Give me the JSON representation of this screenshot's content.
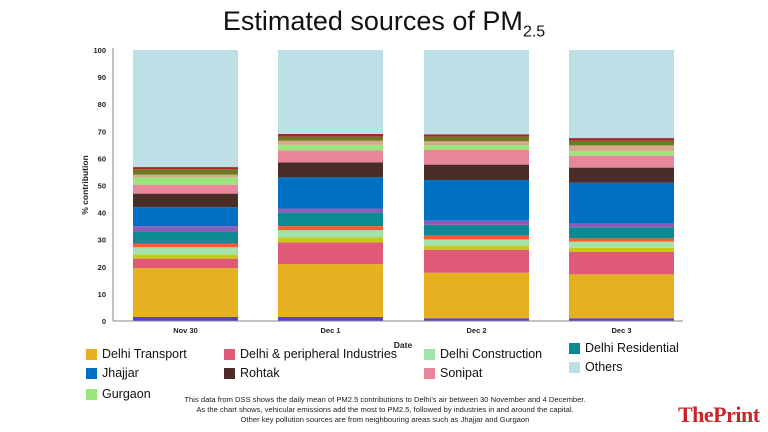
{
  "chart_data": {
    "type": "bar",
    "stacked": true,
    "title_main": "Estimated sources of PM",
    "title_sub": "2.5",
    "xlabel": "Date",
    "ylabel": "% contribution",
    "ylim": [
      0,
      100
    ],
    "yticks": [
      0,
      10,
      20,
      30,
      40,
      50,
      60,
      70,
      80,
      90,
      100
    ],
    "grid": false,
    "legend_position": "bottom",
    "categories": [
      "Nov 30",
      "Dec 1",
      "Dec 2",
      "Dec 3"
    ],
    "series": [
      {
        "color": "#5a3ee0",
        "values": [
          1.5,
          1.5,
          1.0,
          1.0
        ]
      },
      {
        "name": "Delhi Transport",
        "color": "#e6b120",
        "values": [
          18.0,
          19.5,
          16.8,
          16.2
        ]
      },
      {
        "name": "Delhi & peripheral Industries",
        "color": "#e05a78",
        "values": [
          3.5,
          8.0,
          8.5,
          8.3
        ]
      },
      {
        "color": "#c9c81a",
        "values": [
          1.5,
          1.8,
          1.5,
          1.5
        ]
      },
      {
        "name": "Delhi Construction",
        "color": "#a1e3a8",
        "values": [
          2.7,
          2.7,
          2.3,
          2.3
        ]
      },
      {
        "color": "#ff5a2a",
        "values": [
          1.3,
          1.5,
          1.4,
          1.2
        ]
      },
      {
        "name": "Delhi Residential",
        "color": "#0b8a94",
        "values": [
          4.5,
          5.0,
          4.0,
          4.1
        ]
      },
      {
        "color": "#8c5cb8",
        "values": [
          2.0,
          1.5,
          1.5,
          1.3
        ]
      },
      {
        "name": "Jhajjar",
        "color": "#0071c2",
        "values": [
          7.0,
          11.5,
          15.0,
          15.1
        ]
      },
      {
        "name": "Rohtak",
        "color": "#4a2d26",
        "values": [
          5.0,
          5.5,
          5.7,
          5.6
        ]
      },
      {
        "name": "Sonipat",
        "color": "#e8879a",
        "values": [
          3.3,
          4.5,
          5.4,
          4.4
        ]
      },
      {
        "name": "Gurgaon",
        "color": "#9be67a",
        "values": [
          2.7,
          2.0,
          1.7,
          1.7
        ]
      },
      {
        "color": "#d6a98c",
        "values": [
          1.0,
          1.5,
          1.5,
          2.1
        ]
      },
      {
        "color": "#6e7a22",
        "values": [
          2.0,
          1.5,
          1.7,
          1.7
        ]
      },
      {
        "color": "#a4262c",
        "values": [
          0.8,
          1.0,
          0.9,
          1.0
        ]
      },
      {
        "name": "Others",
        "color": "#bde0e6",
        "values": [
          43.2,
          31.0,
          31.1,
          32.5
        ]
      }
    ]
  },
  "legend": [
    {
      "label": "Delhi Transport",
      "color": "#e6b120"
    },
    {
      "label": "Delhi & peripheral Industries",
      "color": "#e05a78"
    },
    {
      "label": "Delhi Construction",
      "color": "#a1e3a8"
    },
    {
      "label": "Delhi Residential",
      "color": "#0b8a94"
    },
    {
      "label": "Jhajjar",
      "color": "#0071c2"
    },
    {
      "label": "Rohtak",
      "color": "#4a2d26"
    },
    {
      "label": "Sonipat",
      "color": "#e8879a"
    },
    {
      "label": "Others",
      "color": "#bde0e6"
    },
    {
      "label": "Gurgaon",
      "color": "#9be67a"
    }
  ],
  "note": [
    "This data from DSS shows the daily mean of PM2.5 contributions to Delhi's air between 30 November and 4 December.",
    "As the chart shows, vehicular emissions add the most to PM2.5, followed by industries in and around the capital.",
    "Other key pollution sources are from neighbouring areas such as Jhajjar and Gurgaon"
  ],
  "logo": "ThePrint"
}
